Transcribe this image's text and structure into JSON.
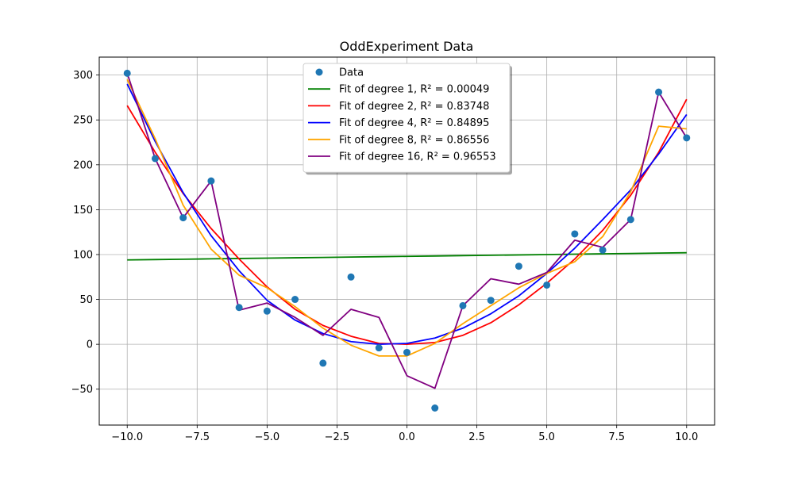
{
  "chart_data": {
    "type": "scatter",
    "title": "OddExperiment Data",
    "xlabel": "",
    "ylabel": "",
    "xlim": [
      -11,
      11
    ],
    "ylim": [
      -90,
      320
    ],
    "xticks": [
      -10.0,
      -7.5,
      -5.0,
      -2.5,
      0.0,
      2.5,
      5.0,
      7.5,
      10.0
    ],
    "xtick_labels": [
      "−10.0",
      "−7.5",
      "−5.0",
      "−2.5",
      "0.0",
      "2.5",
      "5.0",
      "7.5",
      "10.0"
    ],
    "yticks": [
      -50,
      0,
      50,
      100,
      150,
      200,
      250,
      300
    ],
    "ytick_labels": [
      "−50",
      "0",
      "50",
      "100",
      "150",
      "200",
      "250",
      "300"
    ],
    "grid": true,
    "legend_position": "top-center",
    "x": [
      -10,
      -9,
      -8,
      -7,
      -6,
      -5,
      -4,
      -3,
      -2,
      -1,
      0,
      1,
      2,
      3,
      4,
      5,
      6,
      7,
      8,
      9,
      10
    ],
    "scatter": {
      "name": "Data",
      "color": "#1f77b4",
      "values": [
        302,
        207,
        141,
        182,
        41,
        37,
        50,
        -21,
        75,
        -4,
        -9,
        -71,
        43,
        49,
        87,
        66,
        123,
        105,
        139,
        281,
        230
      ]
    },
    "series": [
      {
        "name": "Fit of degree 1, R² = 0.00049",
        "color": "#008000",
        "values": [
          94,
          94.4,
          94.8,
          95.2,
          95.6,
          96,
          96.4,
          96.8,
          97.2,
          97.6,
          98,
          98.4,
          98.8,
          99.2,
          99.6,
          100,
          100.4,
          100.8,
          101.2,
          101.6,
          102
        ]
      },
      {
        "name": "Fit of degree 2, R² = 0.83748",
        "color": "#ff0000",
        "values": [
          266,
          214,
          168,
          129,
          95,
          64,
          39,
          21,
          9,
          1,
          0,
          2,
          10,
          24,
          44,
          68,
          95,
          127,
          166,
          214,
          273
        ]
      },
      {
        "name": "Fit of degree 4, R² = 0.84895",
        "color": "#0000ff",
        "values": [
          290,
          226,
          169,
          121,
          82,
          49,
          27,
          12,
          3,
          0,
          1,
          7,
          18,
          34,
          54,
          79,
          107,
          139,
          172,
          212,
          256
        ]
      },
      {
        "name": "Fit of degree 8, R² = 0.86556",
        "color": "#ffa500",
        "values": [
          295,
          229,
          155,
          106,
          77,
          63,
          42,
          18,
          -1,
          -13,
          -13,
          1,
          23,
          43,
          63,
          79,
          92,
          120,
          170,
          243,
          240
        ]
      },
      {
        "name": "Fit of degree 16, R² = 0.96553",
        "color": "#800080",
        "values": [
          302,
          207,
          141,
          182,
          38,
          46,
          30,
          10,
          39,
          30,
          -35,
          -49,
          43,
          73,
          67,
          80,
          116,
          108,
          139,
          281,
          230
        ]
      }
    ]
  }
}
